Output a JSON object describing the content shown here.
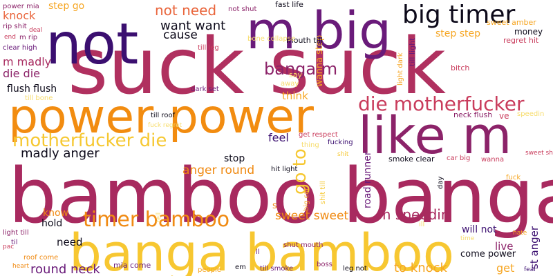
{
  "palette": {
    "dark_purple": "#3b0f70",
    "purple": "#6a1b7a",
    "magenta": "#8c2369",
    "crimson": "#b5305f",
    "rose": "#c93c5c",
    "orange": "#f08a12",
    "amber": "#f6a623",
    "gold": "#f6c832",
    "pale_gold": "#f7dc6a",
    "black": "#0d0a1a"
  },
  "words": [
    {
      "text": "suck suck",
      "color": "#b0305f"
    },
    {
      "text": "bamboo banga",
      "color": "#a82a5f"
    },
    {
      "text": "banga bamboo",
      "color": "#f7c731"
    },
    {
      "text": "power power",
      "color": "#f28c10"
    },
    {
      "text": "like m",
      "color": "#8c2369"
    },
    {
      "text": "not",
      "color": "#3b0f70"
    },
    {
      "text": "m big",
      "color": "#6a1b7a"
    },
    {
      "text": "big timer",
      "color": "#0d0a1a"
    },
    {
      "text": "die motherfucker",
      "color": "#c93c5c"
    },
    {
      "text": "motherfucker die",
      "color": "#f6c832"
    },
    {
      "text": "timer bamboo",
      "color": "#f08a12"
    },
    {
      "text": "banga m",
      "color": "#8c2369"
    },
    {
      "text": "not need",
      "color": "#e9643a"
    },
    {
      "text": "want want",
      "color": "#0d0a1a"
    },
    {
      "text": "cause",
      "color": "#0d0a1a"
    },
    {
      "text": "go to",
      "color": "#f6c832"
    },
    {
      "text": "madly anger",
      "color": "#0d0a1a"
    },
    {
      "text": "anger round",
      "color": "#f08a12"
    },
    {
      "text": "sweet sweet",
      "color": "#f08a12"
    },
    {
      "text": "m speedin",
      "color": "#a82a5f"
    },
    {
      "text": "road runner",
      "color": "#6a1b7a"
    },
    {
      "text": "round neck",
      "color": "#6a1b7a"
    },
    {
      "text": "to knock",
      "color": "#f6a623"
    },
    {
      "text": "knock",
      "color": "#e9643a"
    },
    {
      "text": "step go",
      "color": "#f6a623"
    },
    {
      "text": "m madly",
      "color": "#a82a5f"
    },
    {
      "text": "die die",
      "color": "#8c2369"
    },
    {
      "text": "flush flush",
      "color": "#0d0a1a"
    },
    {
      "text": "step step",
      "color": "#f6a623"
    },
    {
      "text": "feel",
      "color": "#3b0f70"
    },
    {
      "text": "stop",
      "color": "#0d0a1a"
    },
    {
      "text": "think",
      "color": "#f6a623"
    },
    {
      "text": "need",
      "color": "#0d0a1a"
    },
    {
      "text": "hold",
      "color": "#0d0a1a"
    },
    {
      "text": "know",
      "color": "#f08a12"
    },
    {
      "text": "live",
      "color": "#8c2369"
    },
    {
      "text": "will not",
      "color": "#3b0f70"
    },
    {
      "text": "come power",
      "color": "#0d0a1a"
    },
    {
      "text": "get",
      "color": "#f6a623"
    },
    {
      "text": "st anger",
      "color": "#3b0f70"
    },
    {
      "text": "wanna step",
      "color": "#f6a623"
    },
    {
      "text": "money",
      "color": "#0d0a1a"
    },
    {
      "text": "sweet amber",
      "color": "#f6a623"
    },
    {
      "text": "regret hit",
      "color": "#c93c5c"
    },
    {
      "text": "fast life",
      "color": "#0d0a1a"
    },
    {
      "text": "not shut",
      "color": "#8c2369"
    },
    {
      "text": "mouth till",
      "color": "#0d0a1a"
    },
    {
      "text": "till light",
      "color": "#6a1b7a"
    },
    {
      "text": "light dark",
      "color": "#f6a623"
    },
    {
      "text": "bitch",
      "color": "#c93c5c"
    },
    {
      "text": "neck flush",
      "color": "#8c2369"
    },
    {
      "text": "ve",
      "color": "#c93c5c"
    },
    {
      "text": "speedin",
      "color": "#f7dc6a"
    },
    {
      "text": "power mia",
      "color": "#8c2369"
    },
    {
      "text": "rip shit",
      "color": "#8c2369"
    },
    {
      "text": "end",
      "color": "#c93c5c"
    },
    {
      "text": "m rip",
      "color": "#8c2369"
    },
    {
      "text": "clear high",
      "color": "#6a1b7a"
    },
    {
      "text": "till bone",
      "color": "#f7dc6a"
    },
    {
      "text": "deal",
      "color": "#c93c5c"
    },
    {
      "text": "till leg",
      "color": "#c93c5c"
    },
    {
      "text": "bone collapse",
      "color": "#f7dc6a"
    },
    {
      "text": "say",
      "color": "#f7dc6a"
    },
    {
      "text": "away",
      "color": "#f7dc6a"
    },
    {
      "text": "dark set",
      "color": "#6a1b7a"
    },
    {
      "text": "till roof",
      "color": "#0d0a1a"
    },
    {
      "text": "fuck regret",
      "color": "#f7dc6a"
    },
    {
      "text": "get respect",
      "color": "#c93c5c"
    },
    {
      "text": "thing",
      "color": "#f7dc6a"
    },
    {
      "text": "fucking",
      "color": "#3b0f70"
    },
    {
      "text": "shit",
      "color": "#f6c832"
    },
    {
      "text": "smoke clear",
      "color": "#0d0a1a"
    },
    {
      "text": "car big",
      "color": "#c93c5c"
    },
    {
      "text": "wanna",
      "color": "#c93c5c"
    },
    {
      "text": "sweet shit",
      "color": "#c93c5c"
    },
    {
      "text": "hit light",
      "color": "#0d0a1a"
    },
    {
      "text": "big car",
      "color": "#f6a623"
    },
    {
      "text": "shit till",
      "color": "#f6c832"
    },
    {
      "text": "day",
      "color": "#0d0a1a"
    },
    {
      "text": "fuck",
      "color": "#f6a623"
    },
    {
      "text": "s",
      "color": "#f08a12"
    },
    {
      "text": "light till",
      "color": "#8c2369"
    },
    {
      "text": "til",
      "color": "#6a1b7a"
    },
    {
      "text": "pac",
      "color": "#c93c5c"
    },
    {
      "text": "tell",
      "color": "#f7dc6a"
    },
    {
      "text": "ill",
      "color": "#f7dc6a"
    },
    {
      "text": "time",
      "color": "#f7dc6a"
    },
    {
      "text": "hate",
      "color": "#f6a623"
    },
    {
      "text": "roof come",
      "color": "#f08a12"
    },
    {
      "text": "heart",
      "color": "#f08a12"
    },
    {
      "text": "mia come",
      "color": "#6a1b7a"
    },
    {
      "text": "people",
      "color": "#f6a623"
    },
    {
      "text": "em",
      "color": "#0d0a1a"
    },
    {
      "text": "till smoke",
      "color": "#6a1b7a"
    },
    {
      "text": "boss",
      "color": "#8c2369"
    },
    {
      "text": "leg not",
      "color": "#0d0a1a"
    },
    {
      "text": "shut mouth",
      "color": "#8c2369"
    },
    {
      "text": "ll",
      "color": "#6a1b7a"
    },
    {
      "text": "fear",
      "color": "#3b0f70"
    }
  ]
}
